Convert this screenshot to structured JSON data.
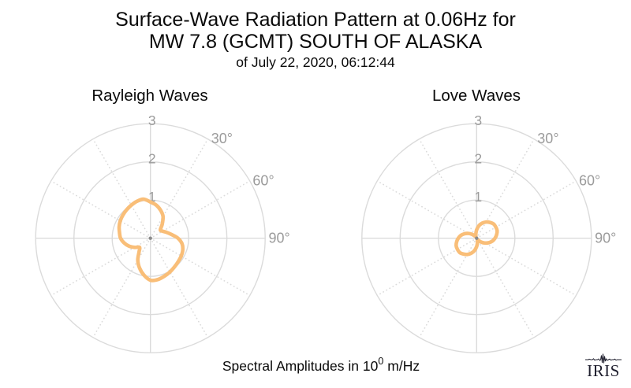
{
  "title": {
    "line1": "Surface-Wave Radiation Pattern at 0.06Hz for",
    "line2": "MW 7.8 (GCMT) SOUTH OF ALASKA",
    "line3": "of July 22, 2020, 06:12:44"
  },
  "caption": {
    "text_before_sup": "Spectral Amplitudes in 10",
    "sup": "0",
    "text_after_sup": "m/Hz"
  },
  "logo": {
    "text": "IRIS"
  },
  "colors": {
    "background": "#ffffff",
    "pattern_stroke": "#F9BE78",
    "grid": "#DBDBDB",
    "tick_label": "#9B9B9B",
    "center_dot": "#8A8A8A",
    "text": "#0a0a0a",
    "logo": "#20202f"
  },
  "chart_data": [
    {
      "type": "polar-radiation",
      "title": "Rayleigh Waves",
      "r_ticks": [
        "1",
        "2",
        "3"
      ],
      "r_max": 3,
      "angle_tick_labels": [
        {
          "label": "30°",
          "az_deg": 30,
          "label_az_deg": 35.6,
          "label_r": 3.21
        },
        {
          "label": "60°",
          "az_deg": 60,
          "label_az_deg": 62.9,
          "label_r": 3.32
        },
        {
          "label": "90°",
          "az_deg": 90,
          "label_az_deg": 90.0,
          "label_r": 3.37
        }
      ],
      "solid_spoke_az_deg": [
        0,
        90,
        180,
        270
      ],
      "dotted_spoke_az_deg": [
        30,
        60,
        120,
        150,
        210,
        240,
        300,
        330
      ],
      "azimuth_convention": "degrees clockwise from top",
      "azimuth_deg": [
        0,
        10,
        20,
        30,
        40,
        50,
        60,
        70,
        80,
        90,
        100,
        110,
        120,
        130,
        140,
        150,
        160,
        170,
        180,
        190,
        200,
        210,
        220,
        230,
        240,
        250,
        260,
        270,
        280,
        290,
        300,
        310,
        320,
        330,
        340,
        350
      ],
      "r": [
        0.95,
        0.88,
        0.78,
        0.66,
        0.48,
        0.34,
        0.37,
        0.45,
        0.56,
        0.72,
        0.84,
        0.9,
        0.93,
        0.95,
        0.98,
        1.02,
        1.06,
        1.1,
        1.1,
        0.98,
        0.83,
        0.66,
        0.46,
        0.37,
        0.48,
        0.6,
        0.7,
        0.78,
        0.82,
        0.87,
        0.91,
        0.94,
        0.97,
        1.0,
        1.03,
        1.04
      ]
    },
    {
      "type": "polar-radiation",
      "title": "Love Waves",
      "r_ticks": [
        "1",
        "2",
        "3"
      ],
      "r_max": 3,
      "angle_tick_labels": [
        {
          "label": "30°",
          "az_deg": 30,
          "label_az_deg": 35.6,
          "label_r": 3.21
        },
        {
          "label": "60°",
          "az_deg": 60,
          "label_az_deg": 62.9,
          "label_r": 3.32
        },
        {
          "label": "90°",
          "az_deg": 90,
          "label_az_deg": 90.0,
          "label_r": 3.37
        }
      ],
      "solid_spoke_az_deg": [
        0,
        90,
        180,
        270
      ],
      "dotted_spoke_az_deg": [
        30,
        60,
        120,
        150,
        210,
        240,
        300,
        330
      ],
      "azimuth_convention": "degrees clockwise from top",
      "azimuth_deg": [
        0,
        10,
        20,
        30,
        40,
        50,
        60,
        70,
        80,
        90,
        100,
        110,
        120,
        130,
        140,
        150,
        160,
        170,
        180,
        190,
        200,
        210,
        220,
        230,
        240,
        250,
        260,
        270,
        280,
        290,
        300,
        310,
        320,
        330,
        340,
        350
      ],
      "r": [
        0.22,
        0.33,
        0.42,
        0.49,
        0.54,
        0.58,
        0.58,
        0.57,
        0.53,
        0.48,
        0.42,
        0.34,
        0.25,
        0.16,
        0.08,
        0.04,
        0.06,
        0.12,
        0.22,
        0.33,
        0.42,
        0.49,
        0.54,
        0.58,
        0.58,
        0.57,
        0.53,
        0.48,
        0.42,
        0.34,
        0.25,
        0.16,
        0.08,
        0.04,
        0.06,
        0.12
      ]
    }
  ]
}
